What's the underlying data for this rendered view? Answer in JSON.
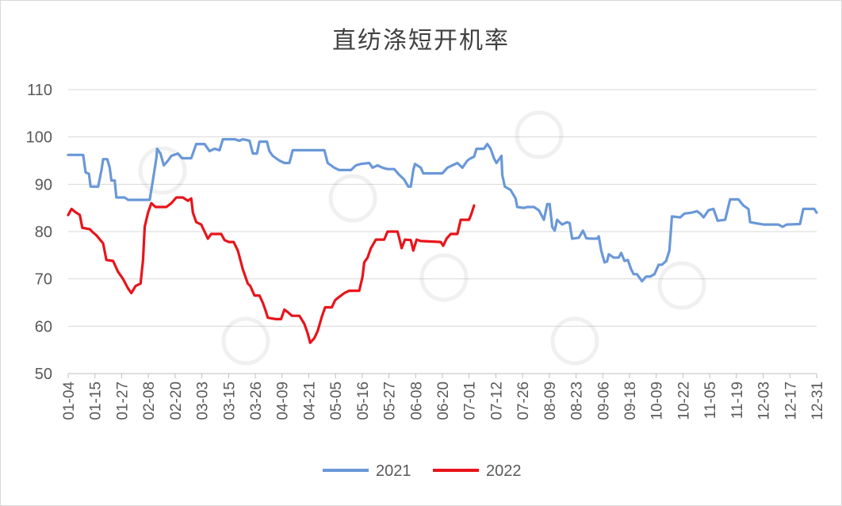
{
  "chart_data": {
    "type": "line",
    "title": "直纺涤短开机率",
    "xlabel": "",
    "ylabel": "",
    "ylim": [
      50,
      110
    ],
    "yticks": [
      50,
      60,
      70,
      80,
      90,
      100,
      110
    ],
    "x_tick_labels": [
      "01-04",
      "01-15",
      "01-27",
      "02-08",
      "02-20",
      "03-03",
      "03-15",
      "03-26",
      "04-09",
      "04-21",
      "05-05",
      "05-16",
      "05-27",
      "06-08",
      "06-20",
      "07-01",
      "07-12",
      "07-26",
      "08-09",
      "08-23",
      "09-06",
      "09-18",
      "10-09",
      "10-22",
      "11-05",
      "11-19",
      "12-03",
      "12-17",
      "12-31"
    ],
    "grid": true,
    "legend": "bottom",
    "series": [
      {
        "name": "2021",
        "color": "#6a98d8",
        "points": [
          [
            0,
            96.2
          ],
          [
            0.9,
            96.2
          ],
          [
            1.05,
            92.5
          ],
          [
            1.25,
            92.2
          ],
          [
            1.35,
            89.5
          ],
          [
            1.8,
            89.5
          ],
          [
            2.0,
            93
          ],
          [
            2.1,
            95.3
          ],
          [
            2.35,
            95.3
          ],
          [
            2.5,
            93.5
          ],
          [
            2.6,
            90.8
          ],
          [
            2.8,
            90.8
          ],
          [
            2.9,
            87.2
          ],
          [
            3.4,
            87.2
          ],
          [
            3.6,
            86.7
          ],
          [
            4.9,
            86.7
          ],
          [
            5.1,
            91
          ],
          [
            5.3,
            95.5
          ],
          [
            5.35,
            97.5
          ],
          [
            5.55,
            96.5
          ],
          [
            5.75,
            94
          ],
          [
            6.0,
            95
          ],
          [
            6.2,
            96
          ],
          [
            6.6,
            96.5
          ],
          [
            6.85,
            95.5
          ],
          [
            7.4,
            95.5
          ],
          [
            7.7,
            98.5
          ],
          [
            8.2,
            98.5
          ],
          [
            8.5,
            97
          ],
          [
            8.8,
            97.5
          ],
          [
            9.1,
            97.2
          ],
          [
            9.3,
            99.5
          ],
          [
            10.0,
            99.5
          ],
          [
            10.3,
            99.2
          ],
          [
            10.5,
            99.5
          ],
          [
            10.9,
            99.2
          ],
          [
            11.1,
            96.5
          ],
          [
            11.35,
            96.5
          ],
          [
            11.5,
            99
          ],
          [
            11.95,
            99
          ],
          [
            12.1,
            97
          ],
          [
            12.3,
            96
          ],
          [
            12.7,
            95
          ],
          [
            13.0,
            94.5
          ],
          [
            13.3,
            94.5
          ],
          [
            13.5,
            97.2
          ],
          [
            15.4,
            97.2
          ],
          [
            15.6,
            94.5
          ],
          [
            16.0,
            93.5
          ],
          [
            16.3,
            93
          ],
          [
            17.0,
            93
          ],
          [
            17.3,
            94
          ],
          [
            17.6,
            94.3
          ],
          [
            18.1,
            94.5
          ],
          [
            18.3,
            93.5
          ],
          [
            18.6,
            94
          ],
          [
            18.9,
            93.5
          ],
          [
            19.2,
            93.2
          ],
          [
            19.6,
            93.2
          ],
          [
            19.9,
            92
          ],
          [
            20.2,
            91
          ],
          [
            20.45,
            89.5
          ],
          [
            20.6,
            89.5
          ],
          [
            20.75,
            93
          ],
          [
            20.85,
            94.3
          ],
          [
            21.2,
            93.5
          ],
          [
            21.35,
            92.3
          ],
          [
            22.5,
            92.3
          ],
          [
            22.8,
            93.5
          ],
          [
            23.4,
            94.5
          ],
          [
            23.7,
            93.5
          ],
          [
            24.0,
            95
          ],
          [
            24.2,
            95.5
          ],
          [
            24.4,
            95.8
          ],
          [
            24.55,
            97.5
          ],
          [
            25.0,
            97.5
          ],
          [
            25.2,
            98.5
          ],
          [
            25.4,
            97.5
          ],
          [
            25.6,
            95.5
          ],
          [
            25.75,
            94.5
          ],
          [
            26.05,
            96
          ],
          [
            26.1,
            92
          ],
          [
            26.25,
            89.5
          ],
          [
            26.6,
            88.8
          ],
          [
            26.9,
            87
          ],
          [
            27.0,
            85.2
          ],
          [
            27.4,
            85
          ],
          [
            27.6,
            85.2
          ],
          [
            28.0,
            85.2
          ],
          [
            28.3,
            84.5
          ],
          [
            28.6,
            82.5
          ],
          [
            28.8,
            85.8
          ],
          [
            28.95,
            85.8
          ],
          [
            29.1,
            81
          ],
          [
            29.25,
            80.2
          ],
          [
            29.4,
            82.5
          ],
          [
            29.7,
            81.5
          ],
          [
            30.0,
            82
          ],
          [
            30.15,
            81.8
          ],
          [
            30.3,
            78.5
          ],
          [
            30.7,
            78.7
          ],
          [
            30.95,
            80.2
          ],
          [
            31.15,
            78.6
          ],
          [
            31.4,
            78.5
          ],
          [
            31.8,
            78.5
          ],
          [
            31.9,
            79
          ],
          [
            32.05,
            76
          ],
          [
            32.25,
            73.5
          ],
          [
            32.4,
            73.7
          ],
          [
            32.5,
            75.2
          ],
          [
            32.8,
            74.5
          ],
          [
            33.1,
            74.5
          ],
          [
            33.25,
            75.5
          ],
          [
            33.45,
            73.8
          ],
          [
            33.65,
            74
          ],
          [
            33.85,
            72
          ],
          [
            34.0,
            71
          ],
          [
            34.2,
            71
          ],
          [
            34.5,
            69.5
          ],
          [
            34.75,
            70.5
          ],
          [
            35.0,
            70.5
          ],
          [
            35.25,
            71
          ],
          [
            35.5,
            73
          ],
          [
            35.7,
            73
          ],
          [
            35.95,
            73.8
          ],
          [
            36.15,
            76
          ],
          [
            36.3,
            83.2
          ],
          [
            36.8,
            83
          ],
          [
            37.05,
            83.8
          ],
          [
            37.5,
            84
          ],
          [
            37.8,
            84.3
          ],
          [
            38.0,
            83.8
          ],
          [
            38.2,
            83
          ],
          [
            38.5,
            84.5
          ],
          [
            38.8,
            84.8
          ],
          [
            39.05,
            82.3
          ],
          [
            39.5,
            82.5
          ],
          [
            39.8,
            86.8
          ],
          [
            40.3,
            86.8
          ],
          [
            40.6,
            85.5
          ],
          [
            40.9,
            84.8
          ],
          [
            41.0,
            82
          ],
          [
            41.3,
            81.8
          ],
          [
            41.8,
            81.5
          ],
          [
            42.7,
            81.5
          ],
          [
            42.95,
            81
          ],
          [
            43.2,
            81.5
          ],
          [
            44.0,
            81.6
          ],
          [
            44.2,
            84.8
          ],
          [
            44.85,
            84.8
          ],
          [
            45.0,
            84
          ]
        ]
      },
      {
        "name": "2022",
        "color": "#e8141a",
        "points": [
          [
            0,
            83.5
          ],
          [
            0.2,
            84.8
          ],
          [
            0.4,
            84.2
          ],
          [
            0.7,
            83.5
          ],
          [
            0.85,
            80.8
          ],
          [
            1.3,
            80.5
          ],
          [
            1.5,
            79.8
          ],
          [
            1.7,
            79.2
          ],
          [
            2.1,
            77.5
          ],
          [
            2.3,
            74
          ],
          [
            2.7,
            73.8
          ],
          [
            3.0,
            71.5
          ],
          [
            3.3,
            70
          ],
          [
            3.6,
            68
          ],
          [
            3.8,
            67
          ],
          [
            4.05,
            68.5
          ],
          [
            4.35,
            69
          ],
          [
            4.5,
            74
          ],
          [
            4.6,
            81
          ],
          [
            4.8,
            84
          ],
          [
            5.0,
            86
          ],
          [
            5.25,
            85.2
          ],
          [
            5.9,
            85.2
          ],
          [
            6.2,
            86
          ],
          [
            6.5,
            87.2
          ],
          [
            6.9,
            87.2
          ],
          [
            7.2,
            86.5
          ],
          [
            7.4,
            87
          ],
          [
            7.5,
            84
          ],
          [
            7.7,
            82
          ],
          [
            8.0,
            81.5
          ],
          [
            8.2,
            80
          ],
          [
            8.4,
            78.5
          ],
          [
            8.6,
            79.5
          ],
          [
            9.2,
            79.5
          ],
          [
            9.4,
            78.2
          ],
          [
            9.65,
            77.8
          ],
          [
            9.95,
            77.8
          ],
          [
            10.2,
            76
          ],
          [
            10.5,
            72
          ],
          [
            10.8,
            69
          ],
          [
            10.95,
            68.5
          ],
          [
            11.2,
            66.5
          ],
          [
            11.5,
            66.5
          ],
          [
            11.7,
            65
          ],
          [
            11.9,
            63
          ],
          [
            12.0,
            61.8
          ],
          [
            12.5,
            61.5
          ],
          [
            12.8,
            61.5
          ],
          [
            13.0,
            63.5
          ],
          [
            13.2,
            63
          ],
          [
            13.45,
            62.2
          ],
          [
            13.9,
            62.2
          ],
          [
            14.2,
            60.5
          ],
          [
            14.4,
            58.5
          ],
          [
            14.55,
            56.5
          ],
          [
            14.8,
            57.5
          ],
          [
            15.0,
            59
          ],
          [
            15.25,
            62
          ],
          [
            15.45,
            64
          ],
          [
            15.85,
            64
          ],
          [
            16.05,
            65.5
          ],
          [
            16.3,
            66.2
          ],
          [
            16.6,
            67
          ],
          [
            16.9,
            67.5
          ],
          [
            17.5,
            67.5
          ],
          [
            17.7,
            70.5
          ],
          [
            17.8,
            73.5
          ],
          [
            18.0,
            74.5
          ],
          [
            18.2,
            76.5
          ],
          [
            18.5,
            78.3
          ],
          [
            19.0,
            78.3
          ],
          [
            19.2,
            80
          ],
          [
            19.8,
            80
          ],
          [
            19.95,
            78
          ],
          [
            20.05,
            76.5
          ],
          [
            20.25,
            78.3
          ],
          [
            20.6,
            78.2
          ],
          [
            20.75,
            76
          ],
          [
            20.95,
            78.3
          ],
          [
            21.2,
            78
          ],
          [
            22.4,
            77.8
          ],
          [
            22.55,
            77
          ],
          [
            22.75,
            78.5
          ],
          [
            23.0,
            79.5
          ],
          [
            23.4,
            79.5
          ],
          [
            23.6,
            82.5
          ],
          [
            24.1,
            82.5
          ],
          [
            24.25,
            83.8
          ],
          [
            24.4,
            85.5
          ]
        ]
      }
    ]
  }
}
